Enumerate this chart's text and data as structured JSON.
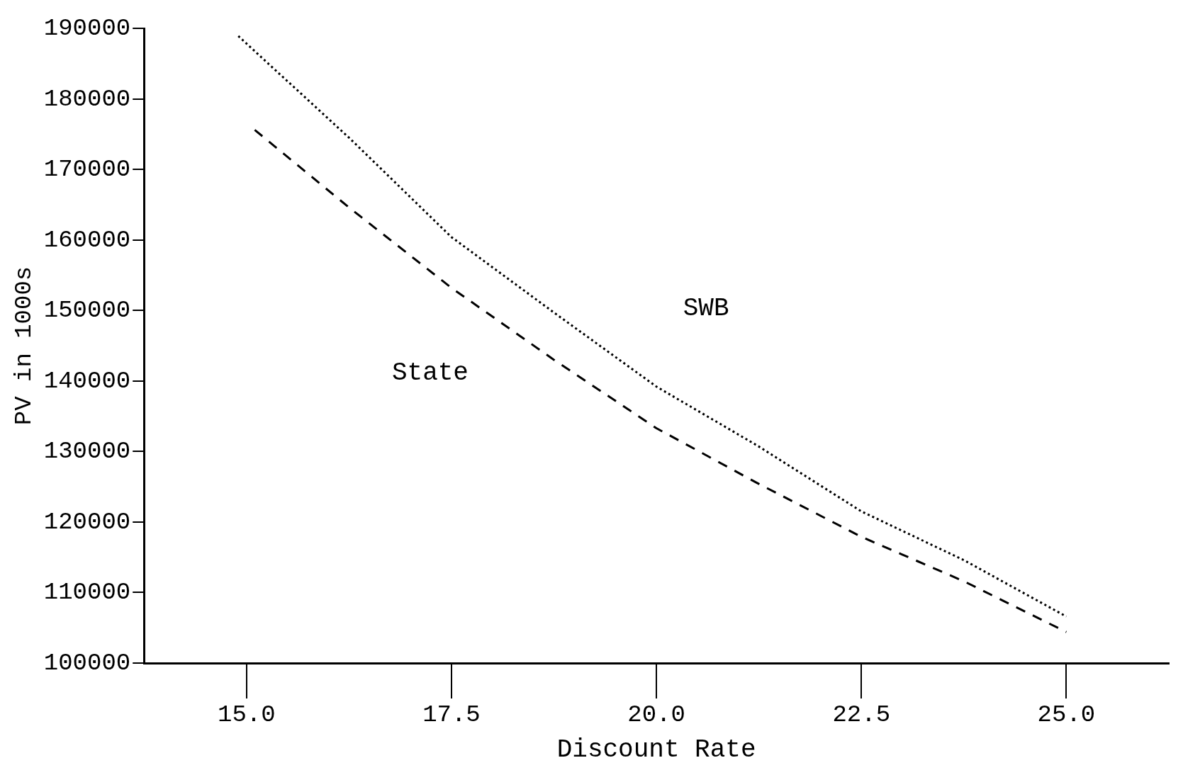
{
  "chart_data": {
    "type": "line",
    "xlabel": "Discount Rate",
    "ylabel": "PV in 1000s",
    "xlim": [
      13.75,
      26.25
    ],
    "xticks": [
      {
        "value": 15,
        "label": "15.0"
      },
      {
        "value": 17.5,
        "label": "17.5"
      },
      {
        "value": 20,
        "label": "20.0"
      },
      {
        "value": 22.5,
        "label": "22.5"
      },
      {
        "value": 25,
        "label": "25.0"
      }
    ],
    "ylim": [
      100000,
      190000
    ],
    "yticks": [
      100000,
      110000,
      120000,
      130000,
      140000,
      150000,
      160000,
      170000,
      180000,
      190000
    ],
    "grid": false,
    "legend": false,
    "marker": "none",
    "series": [
      {
        "name": "SWB",
        "color": "#000000",
        "line_style": "dotted",
        "x": [
          14.9,
          16.25,
          17.5,
          18.75,
          20,
          21.25,
          22.5,
          23.75,
          25
        ],
        "values": [
          188900,
          174500,
          160400,
          149700,
          139200,
          130700,
          121500,
          114600,
          106600
        ]
      },
      {
        "name": "State",
        "color": "#000000",
        "line_style": "dashed",
        "x": [
          15.1,
          16.25,
          17.5,
          18.75,
          20,
          21.25,
          22.5,
          23.75,
          25
        ],
        "values": [
          175600,
          164600,
          153200,
          143000,
          133300,
          125400,
          117900,
          111600,
          104400
        ]
      }
    ]
  }
}
